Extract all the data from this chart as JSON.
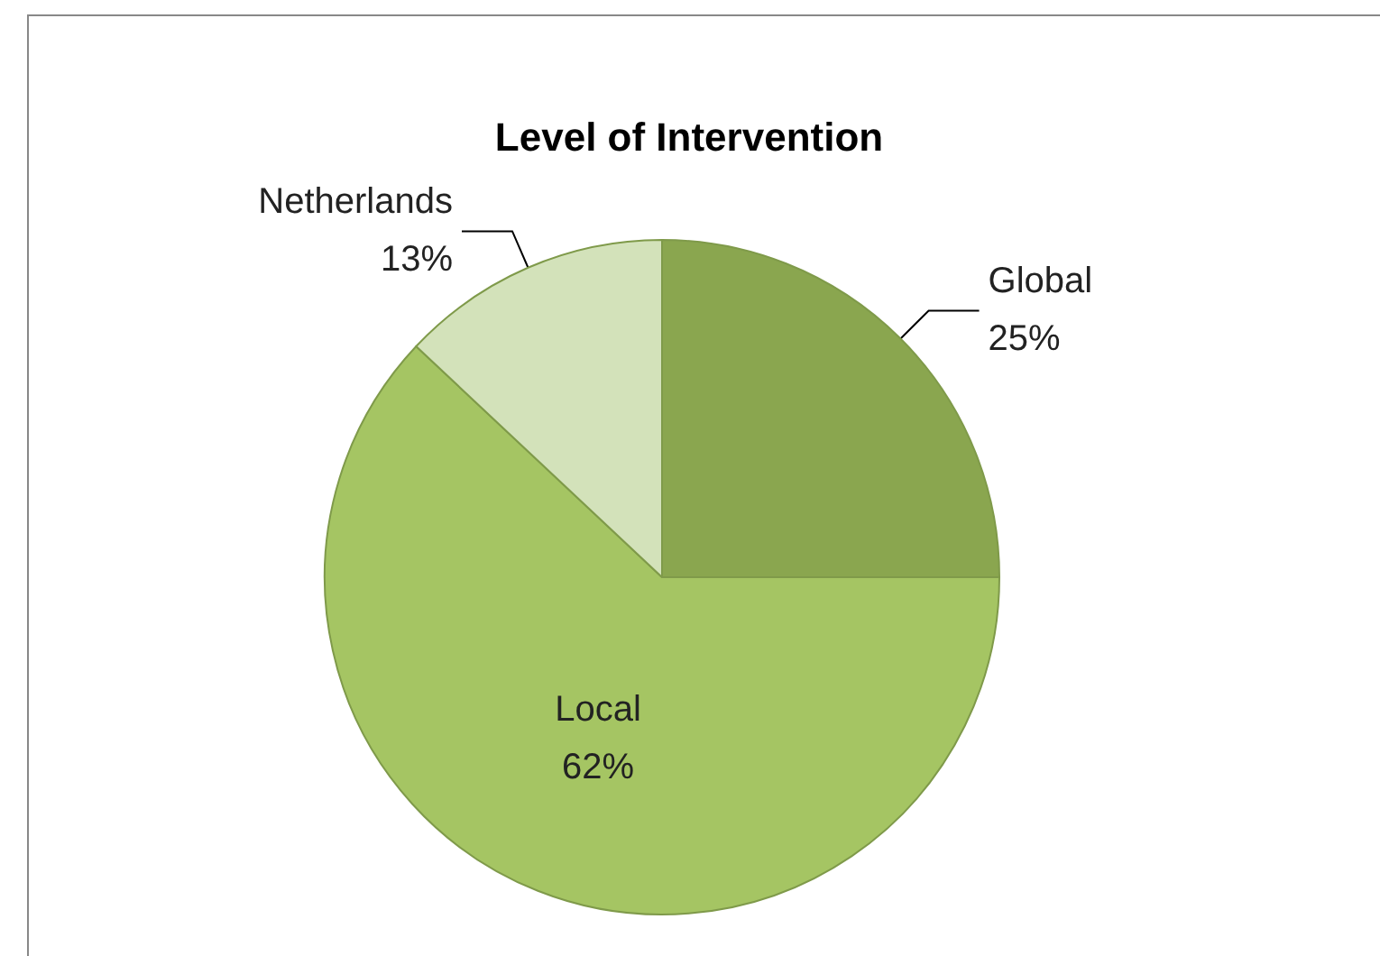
{
  "chart_data": {
    "type": "pie",
    "title": "Level of Intervention",
    "categories": [
      "Global",
      "Local",
      "Netherlands"
    ],
    "values": [
      25,
      62,
      13
    ],
    "value_labels": [
      "25%",
      "62%",
      "13%"
    ],
    "colors": [
      "#8aa64f",
      "#a5c563",
      "#d3e2ba"
    ],
    "legend": false
  }
}
